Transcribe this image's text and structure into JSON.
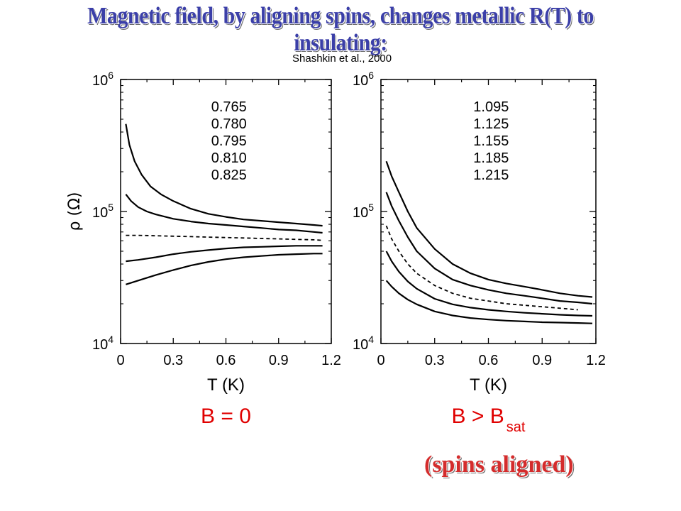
{
  "headline": "Magnetic field, by aligning spins, changes metallic R(T) to insulating:",
  "citation": "Shashkin et al., 2000",
  "footer_note": "(spins aligned)",
  "colors": {
    "headline": "#3b3fa8",
    "panel_label": "#e00000",
    "note": "#d42c2c",
    "axes": "#000000"
  },
  "chart_data": [
    {
      "type": "line",
      "panel_label_main": "B = 0",
      "panel_label_sub": "",
      "xlabel": "T (K)",
      "ylabel": "ρ (Ω)",
      "xlim": [
        0,
        1.2
      ],
      "ylim": [
        10000,
        1000000
      ],
      "yscale": "log",
      "xticks": [
        "0",
        "0.3",
        "0.6",
        "0.9",
        "1.2"
      ],
      "ytick_base": "10",
      "ytick_exps": [
        "4",
        "5",
        "6"
      ],
      "legend": [
        "0.765",
        "0.780",
        "0.795",
        "0.810",
        "0.825"
      ],
      "legend_position": "top-center",
      "grid": false,
      "series": [
        {
          "name": "0.765",
          "style": "solid",
          "x": [
            0.03,
            0.05,
            0.08,
            0.12,
            0.17,
            0.23,
            0.3,
            0.4,
            0.5,
            0.6,
            0.7,
            0.8,
            0.9,
            1.0,
            1.1,
            1.15
          ],
          "y": [
            460000,
            320000,
            240000,
            190000,
            155000,
            135000,
            120000,
            105000,
            96000,
            91000,
            87000,
            85000,
            83000,
            81000,
            79000,
            78000
          ]
        },
        {
          "name": "0.780",
          "style": "solid",
          "x": [
            0.03,
            0.06,
            0.1,
            0.15,
            0.2,
            0.3,
            0.4,
            0.5,
            0.6,
            0.7,
            0.8,
            0.9,
            1.0,
            1.1,
            1.15
          ],
          "y": [
            135000,
            120000,
            108000,
            100000,
            95000,
            88000,
            84000,
            81000,
            79000,
            77000,
            75000,
            73000,
            72000,
            70000,
            69000
          ]
        },
        {
          "name": "0.795",
          "style": "dashed",
          "x": [
            0.03,
            0.1,
            0.2,
            0.3,
            0.4,
            0.5,
            0.6,
            0.7,
            0.8,
            0.9,
            1.0,
            1.1,
            1.15
          ],
          "y": [
            66000,
            66000,
            65500,
            65000,
            64500,
            64000,
            63500,
            63000,
            62500,
            62000,
            61500,
            61000,
            60500
          ]
        },
        {
          "name": "0.810",
          "style": "solid",
          "x": [
            0.03,
            0.1,
            0.2,
            0.3,
            0.4,
            0.5,
            0.6,
            0.7,
            0.8,
            0.9,
            1.0,
            1.1,
            1.15
          ],
          "y": [
            42000,
            43000,
            45000,
            47500,
            49500,
            51000,
            52500,
            53500,
            54000,
            54500,
            55000,
            55000,
            55000
          ]
        },
        {
          "name": "0.825",
          "style": "solid",
          "x": [
            0.03,
            0.1,
            0.2,
            0.3,
            0.4,
            0.5,
            0.6,
            0.7,
            0.8,
            0.9,
            1.0,
            1.1,
            1.15
          ],
          "y": [
            28000,
            30000,
            33000,
            36000,
            39000,
            41500,
            43500,
            45000,
            46000,
            47000,
            47500,
            48000,
            48000
          ]
        }
      ]
    },
    {
      "type": "line",
      "panel_label_main": "B > B",
      "panel_label_sub": "sat",
      "xlabel": "T (K)",
      "ylabel": "",
      "xlim": [
        0,
        1.2
      ],
      "ylim": [
        10000,
        1000000
      ],
      "yscale": "log",
      "xticks": [
        "0",
        "0.3",
        "0.6",
        "0.9",
        "1.2"
      ],
      "ytick_base": "10",
      "ytick_exps": [
        "4",
        "5",
        "6"
      ],
      "legend": [
        "1.095",
        "1.125",
        "1.155",
        "1.185",
        "1.215"
      ],
      "legend_position": "top-center",
      "grid": false,
      "series": [
        {
          "name": "1.095",
          "style": "solid",
          "x": [
            0.03,
            0.06,
            0.1,
            0.15,
            0.2,
            0.3,
            0.4,
            0.5,
            0.6,
            0.7,
            0.8,
            0.9,
            1.0,
            1.1,
            1.18
          ],
          "y": [
            240000,
            185000,
            140000,
            100000,
            75000,
            52000,
            40000,
            34000,
            30500,
            28500,
            27000,
            25500,
            24000,
            23000,
            22500
          ]
        },
        {
          "name": "1.125",
          "style": "solid",
          "x": [
            0.03,
            0.06,
            0.1,
            0.15,
            0.2,
            0.3,
            0.4,
            0.5,
            0.6,
            0.7,
            0.8,
            0.9,
            1.0,
            1.1,
            1.18
          ],
          "y": [
            140000,
            110000,
            85000,
            64000,
            50000,
            37000,
            30500,
            27500,
            25500,
            24000,
            23000,
            22000,
            21000,
            20500,
            20000
          ]
        },
        {
          "name": "1.155",
          "style": "dashed",
          "x": [
            0.03,
            0.06,
            0.1,
            0.15,
            0.2,
            0.3,
            0.4,
            0.5,
            0.6,
            0.7,
            0.8,
            0.9,
            1.0,
            1.1
          ],
          "y": [
            78000,
            62000,
            50000,
            40000,
            34000,
            27500,
            24000,
            22000,
            21000,
            20000,
            19500,
            19000,
            18500,
            18000
          ]
        },
        {
          "name": "1.185",
          "style": "solid",
          "x": [
            0.03,
            0.06,
            0.1,
            0.15,
            0.2,
            0.3,
            0.4,
            0.5,
            0.6,
            0.7,
            0.8,
            0.9,
            1.0,
            1.1,
            1.18
          ],
          "y": [
            50000,
            42000,
            35000,
            29500,
            26000,
            21800,
            19800,
            18700,
            18000,
            17500,
            17100,
            16800,
            16500,
            16300,
            16200
          ]
        },
        {
          "name": "1.215",
          "style": "solid",
          "x": [
            0.03,
            0.06,
            0.1,
            0.15,
            0.2,
            0.3,
            0.4,
            0.5,
            0.6,
            0.7,
            0.8,
            0.9,
            1.0,
            1.1,
            1.18
          ],
          "y": [
            30000,
            27000,
            24000,
            21500,
            19800,
            17500,
            16300,
            15600,
            15200,
            14900,
            14700,
            14500,
            14400,
            14300,
            14200
          ]
        }
      ]
    }
  ]
}
